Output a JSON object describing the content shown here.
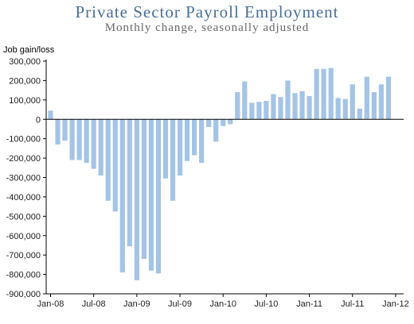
{
  "chart_data": {
    "type": "bar",
    "title": "Private Sector Payroll Employment",
    "subtitle": "Monthly change, seasonally adjusted",
    "ylabel": "Job gain/loss",
    "xlabel": "",
    "ylim": [
      -900000,
      300000
    ],
    "yticks": [
      "300,000",
      "200,000",
      "100,000",
      "0",
      "-100,000",
      "-200,000",
      "-300,000",
      "-400,000",
      "-500,000",
      "-600,000",
      "-700,000",
      "-800,000",
      "-900,000"
    ],
    "ytick_values": [
      300000,
      200000,
      100000,
      0,
      -100000,
      -200000,
      -300000,
      -400000,
      -500000,
      -600000,
      -700000,
      -800000,
      -900000
    ],
    "xtick_labels": [
      "Jan-08",
      "Jul-08",
      "Jan-09",
      "Jul-09",
      "Jan-10",
      "Jul-10",
      "Jan-11",
      "Jul-11",
      "Jan-12"
    ],
    "xtick_month_index": [
      0,
      6,
      12,
      18,
      24,
      30,
      36,
      42,
      48
    ],
    "grid": false,
    "bar_color": "#a4c4e6",
    "categories": [
      "Jan-08",
      "Feb-08",
      "Mar-08",
      "Apr-08",
      "May-08",
      "Jun-08",
      "Jul-08",
      "Aug-08",
      "Sep-08",
      "Oct-08",
      "Nov-08",
      "Dec-08",
      "Jan-09",
      "Feb-09",
      "Mar-09",
      "Apr-09",
      "May-09",
      "Jun-09",
      "Jul-09",
      "Aug-09",
      "Sep-09",
      "Oct-09",
      "Nov-09",
      "Dec-09",
      "Jan-10",
      "Feb-10",
      "Mar-10",
      "Apr-10",
      "May-10",
      "Jun-10",
      "Jul-10",
      "Aug-10",
      "Sep-10",
      "Oct-10",
      "Nov-10",
      "Dec-10",
      "Jan-11",
      "Feb-11",
      "Mar-11",
      "Apr-11",
      "May-11",
      "Jun-11",
      "Jul-11",
      "Aug-11",
      "Sep-11",
      "Oct-11",
      "Nov-11",
      "Dec-11",
      "Jan-12"
    ],
    "values": [
      45000,
      -130000,
      -110000,
      -210000,
      -210000,
      -225000,
      -255000,
      -290000,
      -420000,
      -475000,
      -790000,
      -655000,
      -830000,
      -720000,
      -780000,
      -795000,
      -305000,
      -420000,
      -290000,
      -215000,
      -185000,
      -225000,
      -40000,
      -115000,
      -35000,
      -25000,
      140000,
      195000,
      85000,
      90000,
      95000,
      130000,
      115000,
      200000,
      135000,
      145000,
      120000,
      260000,
      260000,
      265000,
      110000,
      105000,
      180000,
      55000,
      220000,
      140000,
      180000,
      220000,
      0
    ]
  }
}
